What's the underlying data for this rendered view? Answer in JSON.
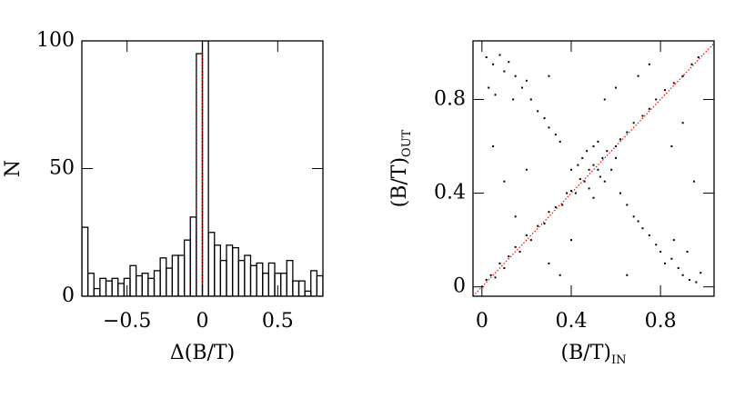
{
  "chart_data": [
    {
      "type": "histogram",
      "xlabel": "Δ(B/T)",
      "ylabel": "N",
      "bins": [
        -0.8,
        -0.76,
        -0.72,
        -0.68,
        -0.64,
        -0.6,
        -0.56,
        -0.52,
        -0.48,
        -0.44,
        -0.4,
        -0.36,
        -0.32,
        -0.28,
        -0.24,
        -0.2,
        -0.16,
        -0.12,
        -0.08,
        -0.04,
        0,
        0.04,
        0.08,
        0.12,
        0.16,
        0.2,
        0.24,
        0.28,
        0.32,
        0.36,
        0.4,
        0.44,
        0.48,
        0.52,
        0.56,
        0.6,
        0.64,
        0.68,
        0.72,
        0.76,
        0.8
      ],
      "values": [
        27,
        9,
        3,
        7,
        6,
        7,
        5,
        7,
        12,
        8,
        9,
        7,
        10,
        15,
        11,
        16,
        16,
        22,
        31,
        95,
        100,
        25,
        20,
        14,
        20,
        19,
        14,
        16,
        12,
        13,
        9,
        13,
        9,
        9,
        14,
        6,
        6,
        2,
        10,
        8
      ],
      "color": "#000000",
      "reference_line": 0,
      "reference_color": "#ff0000",
      "xlim": [
        -0.8,
        0.8
      ],
      "xticks": [
        {
          "value": -0.5,
          "label": "−0.5"
        },
        0,
        0.5
      ],
      "ylim": [
        0,
        100
      ],
      "yticks": [
        0,
        50,
        100
      ]
    },
    {
      "type": "scatter",
      "xlabel": "(B/T)",
      "xlabel_sub": "IN",
      "ylabel": "(B/T)",
      "ylabel_sub": "OUT",
      "color": "#000000",
      "identity_line": true,
      "reference_color": "#ff0000",
      "x": [
        0.02,
        0.04,
        0.06,
        0.08,
        0.1,
        0.12,
        0.15,
        0.17,
        0.2,
        0.22,
        0.25,
        0.28,
        0.3,
        0.33,
        0.36,
        0.38,
        0.4,
        0.42,
        0.44,
        0.46,
        0.48,
        0.5,
        0.52,
        0.54,
        0.56,
        0.6,
        0.62,
        0.65,
        0.68,
        0.72,
        0.75,
        0.78,
        0.82,
        0.86,
        0.9,
        0.94,
        0.97,
        0.45,
        0.5,
        0.55,
        0.48,
        0.52,
        0.43,
        0.58,
        0.47,
        0.53,
        0.4,
        0.6,
        0.5,
        0.02,
        0.05,
        0.08,
        0.1,
        0.12,
        0.15,
        0.18,
        0.2,
        0.22,
        0.25,
        0.28,
        0.3,
        0.33,
        0.35,
        0.03,
        0.06,
        0.14,
        0.62,
        0.65,
        0.68,
        0.7,
        0.72,
        0.75,
        0.78,
        0.8,
        0.82,
        0.85,
        0.88,
        0.9,
        0.93,
        0.96,
        0.98,
        0.86,
        0.92,
        0.1,
        0.05,
        0.15,
        0.3,
        0.35,
        0.7,
        0.75,
        0.85,
        0.95,
        0.6,
        0.2,
        0.3,
        0.9,
        0.65,
        0.4,
        0.55
      ],
      "values": [
        0.03,
        0.05,
        0.04,
        0.1,
        0.08,
        0.13,
        0.17,
        0.15,
        0.22,
        0.2,
        0.26,
        0.27,
        0.32,
        0.34,
        0.35,
        0.4,
        0.41,
        0.4,
        0.46,
        0.45,
        0.5,
        0.52,
        0.5,
        0.55,
        0.58,
        0.6,
        0.63,
        0.66,
        0.7,
        0.73,
        0.76,
        0.8,
        0.84,
        0.87,
        0.9,
        0.95,
        0.98,
        0.55,
        0.6,
        0.45,
        0.42,
        0.62,
        0.52,
        0.5,
        0.58,
        0.47,
        0.5,
        0.55,
        0.38,
        0.98,
        0.95,
        0.99,
        0.92,
        0.96,
        0.9,
        0.85,
        0.88,
        0.8,
        0.75,
        0.72,
        0.68,
        0.65,
        0.62,
        0.85,
        0.82,
        0.8,
        0.4,
        0.35,
        0.3,
        0.28,
        0.25,
        0.22,
        0.18,
        0.15,
        0.1,
        0.12,
        0.08,
        0.05,
        0.03,
        0.02,
        0.06,
        0.2,
        0.15,
        0.45,
        0.6,
        0.3,
        0.1,
        0.05,
        0.9,
        0.95,
        0.6,
        0.45,
        0.85,
        0.5,
        0.9,
        0.7,
        0.05,
        0.2,
        0.8
      ],
      "xlim": [
        -0.04,
        1.04
      ],
      "xticks": [
        0,
        0.4,
        0.8
      ],
      "ylim": [
        -0.04,
        1.05
      ],
      "yticks": [
        0,
        0.4,
        0.8
      ]
    }
  ]
}
